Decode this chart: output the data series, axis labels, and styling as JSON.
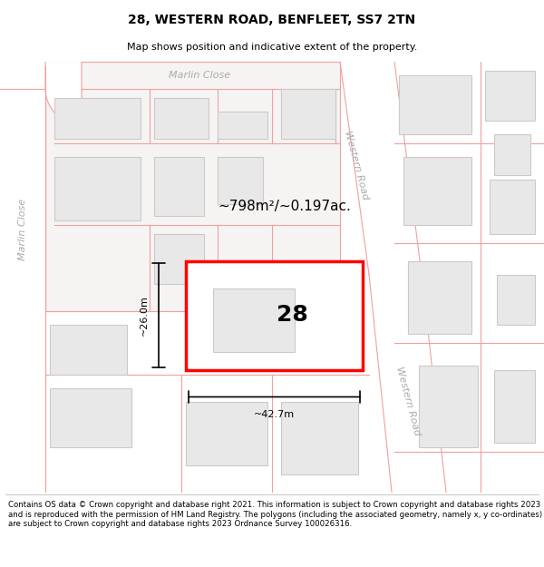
{
  "title": "28, WESTERN ROAD, BENFLEET, SS7 2TN",
  "subtitle": "Map shows position and indicative extent of the property.",
  "footer": "Contains OS data © Crown copyright and database right 2021. This information is subject to Crown copyright and database rights 2023 and is reproduced with the permission of HM Land Registry. The polygons (including the associated geometry, namely x, y co-ordinates) are subject to Crown copyright and database rights 2023 Ordnance Survey 100026316.",
  "area_text": "~798m²/~0.197ac.",
  "width_label": "~42.7m",
  "height_label": "~26.0m",
  "number_label": "28",
  "road_name_upper": "Western Road",
  "road_name_lower": "Western Road",
  "close_name_top": "Marlin Close",
  "close_name_left": "Marlin Close",
  "map_bg": "#f5f4f2",
  "road_bg": "#ffffff",
  "building_fill": "#e8e8e8",
  "parcel_line_color": "#f0a0a0",
  "building_outline_color": "#d0c8c8",
  "highlight_fill": "#ffffff",
  "highlight_edge": "#ff0000",
  "text_color_road": "#aaaaaa",
  "dim_color": "#000000",
  "title_fontsize": 10,
  "subtitle_fontsize": 8,
  "footer_fontsize": 6.2
}
